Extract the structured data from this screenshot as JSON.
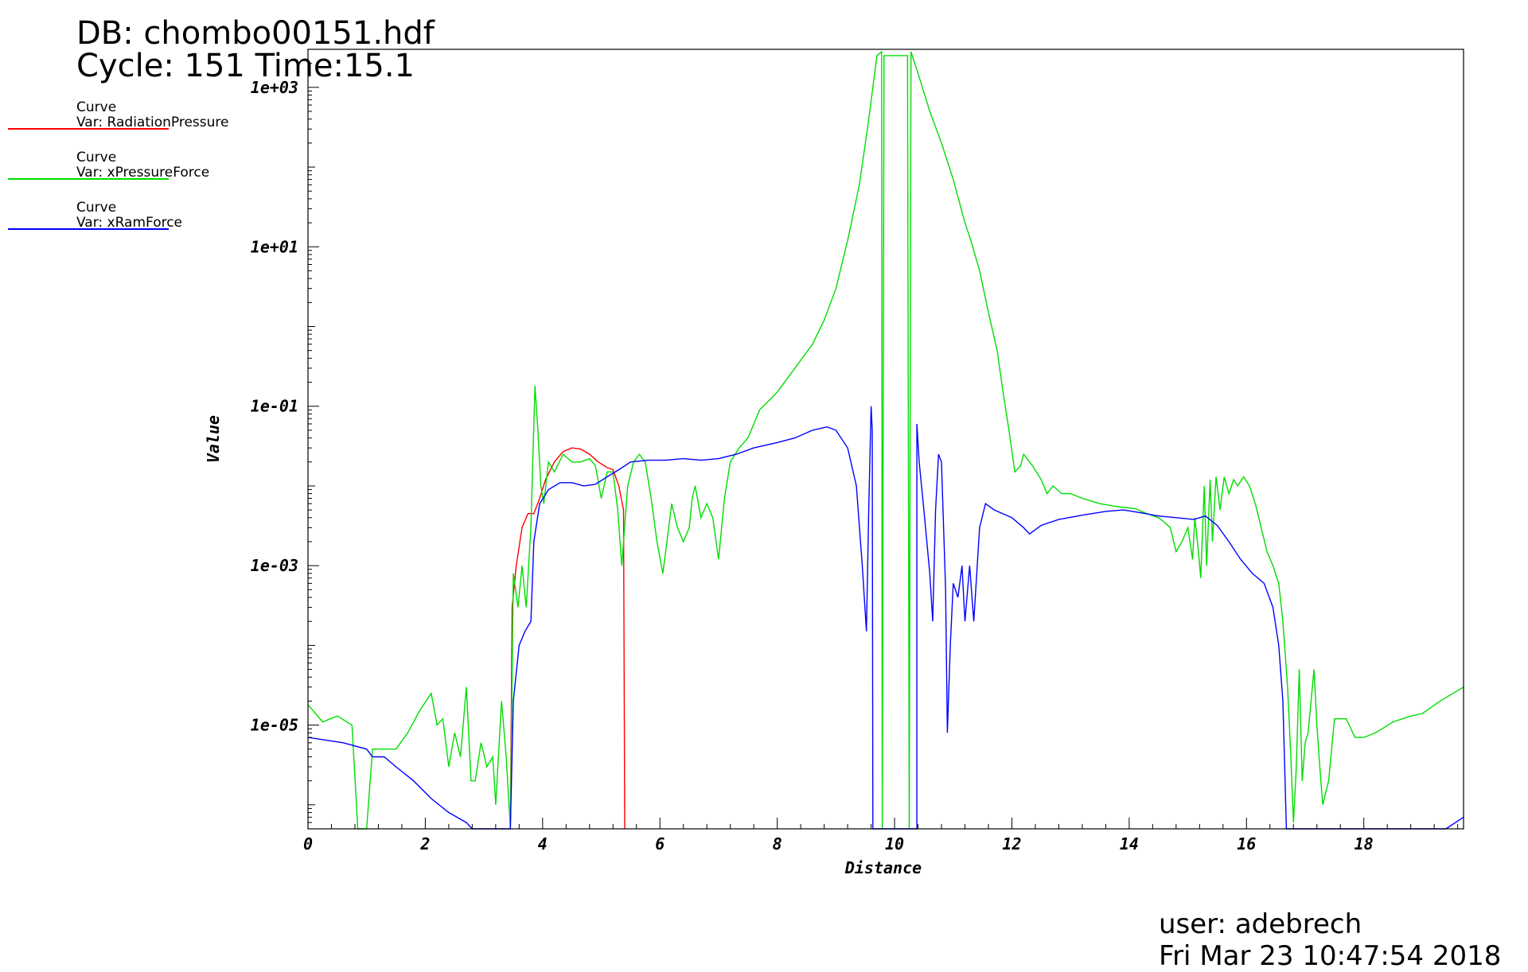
{
  "header": {
    "db": "DB: chombo00151.hdf",
    "cycle_time": "Cycle: 151 Time:15.1"
  },
  "legend": [
    {
      "title": "Curve",
      "var": "Var: RadiationPressure",
      "color": "#ff0000"
    },
    {
      "title": "Curve",
      "var": "Var: xPressureForce",
      "color": "#00dd00"
    },
    {
      "title": "Curve",
      "var": "Var: xRamForce",
      "color": "#0000ff"
    }
  ],
  "footer": {
    "user": "user: adebrech",
    "date": "Fri Mar 23 10:47:54 2018"
  },
  "chart_data": {
    "type": "line",
    "xlabel": "Distance",
    "ylabel": "Value",
    "yscale": "log",
    "xlim": [
      0,
      19.7
    ],
    "ylim": [
      5e-07,
      3000
    ],
    "xticks": [
      0,
      2,
      4,
      6,
      8,
      10,
      12,
      14,
      16,
      18
    ],
    "xtick_labels": [
      "0",
      "2",
      "4",
      "6",
      "8",
      "10",
      "12",
      "14",
      "16",
      "18"
    ],
    "yticks": [
      1e-05,
      0.001,
      0.1,
      10,
      1000
    ],
    "ytick_labels": [
      "1e-05",
      "1e-03",
      "1e-01",
      "1e+01",
      "1e+03"
    ],
    "grid": false,
    "series": [
      {
        "name": "RadiationPressure",
        "color": "#ff0000",
        "points": [
          [
            3.45,
            5e-07
          ],
          [
            3.48,
            0.0003
          ],
          [
            3.55,
            0.001
          ],
          [
            3.65,
            0.003
          ],
          [
            3.75,
            0.0045
          ],
          [
            3.85,
            0.0045
          ],
          [
            3.95,
            0.007
          ],
          [
            4.05,
            0.012
          ],
          [
            4.2,
            0.02
          ],
          [
            4.35,
            0.027
          ],
          [
            4.5,
            0.03
          ],
          [
            4.65,
            0.029
          ],
          [
            4.8,
            0.025
          ],
          [
            4.95,
            0.02
          ],
          [
            5.1,
            0.017
          ],
          [
            5.2,
            0.016
          ],
          [
            5.3,
            0.01
          ],
          [
            5.38,
            0.005
          ],
          [
            5.4,
            5e-07
          ]
        ]
      },
      {
        "name": "xPressureForce",
        "color": "#00dd00",
        "points": [
          [
            0,
            1.8e-05
          ],
          [
            0.25,
            1.1e-05
          ],
          [
            0.5,
            1.3e-05
          ],
          [
            0.75,
            1e-05
          ],
          [
            0.85,
            5e-07
          ],
          [
            1.0,
            5e-07
          ],
          [
            1.1,
            5e-06
          ],
          [
            1.25,
            5e-06
          ],
          [
            1.5,
            5e-06
          ],
          [
            1.7,
            8e-06
          ],
          [
            1.9,
            1.5e-05
          ],
          [
            2.1,
            2.5e-05
          ],
          [
            2.2,
            1e-05
          ],
          [
            2.3,
            1.2e-05
          ],
          [
            2.4,
            3e-06
          ],
          [
            2.5,
            8e-06
          ],
          [
            2.6,
            4e-06
          ],
          [
            2.7,
            3e-05
          ],
          [
            2.78,
            2e-06
          ],
          [
            2.85,
            2e-06
          ],
          [
            2.95,
            6e-06
          ],
          [
            3.05,
            3e-06
          ],
          [
            3.15,
            4e-06
          ],
          [
            3.2,
            1e-06
          ],
          [
            3.3,
            2e-05
          ],
          [
            3.38,
            4e-06
          ],
          [
            3.45,
            5e-07
          ],
          [
            3.5,
            0.0008
          ],
          [
            3.58,
            0.0003
          ],
          [
            3.65,
            0.001
          ],
          [
            3.72,
            0.0003
          ],
          [
            3.8,
            0.003
          ],
          [
            3.87,
            0.18
          ],
          [
            3.92,
            0.05
          ],
          [
            3.97,
            0.01
          ],
          [
            4.02,
            0.006
          ],
          [
            4.1,
            0.02
          ],
          [
            4.2,
            0.015
          ],
          [
            4.35,
            0.025
          ],
          [
            4.5,
            0.02
          ],
          [
            4.65,
            0.02
          ],
          [
            4.8,
            0.022
          ],
          [
            4.9,
            0.018
          ],
          [
            5.0,
            0.007
          ],
          [
            5.1,
            0.015
          ],
          [
            5.2,
            0.015
          ],
          [
            5.28,
            0.005
          ],
          [
            5.35,
            0.001
          ],
          [
            5.45,
            0.01
          ],
          [
            5.55,
            0.02
          ],
          [
            5.65,
            0.025
          ],
          [
            5.75,
            0.02
          ],
          [
            5.85,
            0.007
          ],
          [
            5.95,
            0.002
          ],
          [
            6.05,
            0.0008
          ],
          [
            6.15,
            0.003
          ],
          [
            6.2,
            0.006
          ],
          [
            6.3,
            0.003
          ],
          [
            6.4,
            0.002
          ],
          [
            6.5,
            0.003
          ],
          [
            6.55,
            0.007
          ],
          [
            6.6,
            0.01
          ],
          [
            6.7,
            0.004
          ],
          [
            6.8,
            0.006
          ],
          [
            6.9,
            0.004
          ],
          [
            7.0,
            0.0012
          ],
          [
            7.1,
            0.007
          ],
          [
            7.2,
            0.02
          ],
          [
            7.35,
            0.03
          ],
          [
            7.5,
            0.04
          ],
          [
            7.7,
            0.09
          ],
          [
            8.0,
            0.15
          ],
          [
            8.3,
            0.3
          ],
          [
            8.6,
            0.6
          ],
          [
            8.8,
            1.2
          ],
          [
            9.0,
            3
          ],
          [
            9.2,
            12
          ],
          [
            9.4,
            60
          ],
          [
            9.55,
            350
          ],
          [
            9.7,
            2500
          ],
          [
            9.78,
            2800
          ],
          [
            9.79,
            5e-07
          ],
          [
            9.82,
            2500
          ],
          [
            10.22,
            2500
          ],
          [
            10.25,
            5e-07
          ],
          [
            10.28,
            2800
          ],
          [
            10.4,
            1500
          ],
          [
            10.6,
            500
          ],
          [
            10.8,
            200
          ],
          [
            11.0,
            70
          ],
          [
            11.2,
            20
          ],
          [
            11.3,
            12
          ],
          [
            11.45,
            5
          ],
          [
            11.6,
            1.5
          ],
          [
            11.75,
            0.5
          ],
          [
            11.85,
            0.15
          ],
          [
            11.95,
            0.05
          ],
          [
            12.05,
            0.015
          ],
          [
            12.15,
            0.018
          ],
          [
            12.2,
            0.025
          ],
          [
            12.35,
            0.018
          ],
          [
            12.5,
            0.012
          ],
          [
            12.6,
            0.008
          ],
          [
            12.7,
            0.01
          ],
          [
            12.85,
            0.008
          ],
          [
            13.0,
            0.008
          ],
          [
            13.2,
            0.007
          ],
          [
            13.5,
            0.006
          ],
          [
            13.8,
            0.0055
          ],
          [
            14.1,
            0.0052
          ],
          [
            14.3,
            0.0045
          ],
          [
            14.5,
            0.004
          ],
          [
            14.6,
            0.0035
          ],
          [
            14.7,
            0.003
          ],
          [
            14.8,
            0.0015
          ],
          [
            14.9,
            0.002
          ],
          [
            15.0,
            0.003
          ],
          [
            15.08,
            0.0012
          ],
          [
            15.12,
            0.004
          ],
          [
            15.18,
            0.0015
          ],
          [
            15.22,
            0.0007
          ],
          [
            15.28,
            0.01
          ],
          [
            15.32,
            0.001
          ],
          [
            15.38,
            0.012
          ],
          [
            15.42,
            0.002
          ],
          [
            15.48,
            0.013
          ],
          [
            15.55,
            0.005
          ],
          [
            15.62,
            0.013
          ],
          [
            15.7,
            0.008
          ],
          [
            15.78,
            0.012
          ],
          [
            15.85,
            0.01
          ],
          [
            15.95,
            0.013
          ],
          [
            16.05,
            0.01
          ],
          [
            16.15,
            0.006
          ],
          [
            16.25,
            0.003
          ],
          [
            16.35,
            0.0015
          ],
          [
            16.45,
            0.001
          ],
          [
            16.55,
            0.0006
          ],
          [
            16.62,
            0.0002
          ],
          [
            16.7,
            3e-05
          ],
          [
            16.75,
            5e-06
          ],
          [
            16.8,
            6e-07
          ],
          [
            16.85,
            3e-06
          ],
          [
            16.9,
            5e-05
          ],
          [
            16.95,
            2e-06
          ],
          [
            17.0,
            6e-06
          ],
          [
            17.05,
            8e-06
          ],
          [
            17.1,
            2e-05
          ],
          [
            17.15,
            5e-05
          ],
          [
            17.2,
            1e-05
          ],
          [
            17.25,
            3e-06
          ],
          [
            17.3,
            1e-06
          ],
          [
            17.4,
            2e-06
          ],
          [
            17.5,
            1.2e-05
          ],
          [
            17.7,
            1.2e-05
          ],
          [
            17.85,
            7e-06
          ],
          [
            18.0,
            7e-06
          ],
          [
            18.2,
            8e-06
          ],
          [
            18.5,
            1.1e-05
          ],
          [
            18.8,
            1.3e-05
          ],
          [
            19.0,
            1.4e-05
          ],
          [
            19.3,
            2e-05
          ],
          [
            19.7,
            3e-05
          ]
        ]
      },
      {
        "name": "xRamForce",
        "color": "#0000ff",
        "points": [
          [
            0,
            7e-06
          ],
          [
            0.3,
            6.5e-06
          ],
          [
            0.6,
            6e-06
          ],
          [
            1.0,
            5e-06
          ],
          [
            1.1,
            4e-06
          ],
          [
            1.3,
            4e-06
          ],
          [
            1.5,
            3e-06
          ],
          [
            1.8,
            2e-06
          ],
          [
            2.1,
            1.2e-06
          ],
          [
            2.4,
            8e-07
          ],
          [
            2.7,
            6e-07
          ],
          [
            2.8,
            5e-07
          ],
          [
            3.4,
            5e-07
          ],
          [
            3.45,
            5e-07
          ],
          [
            3.5,
            2e-05
          ],
          [
            3.6,
            0.0001
          ],
          [
            3.7,
            0.00015
          ],
          [
            3.8,
            0.0002
          ],
          [
            3.85,
            0.002
          ],
          [
            3.95,
            0.006
          ],
          [
            4.1,
            0.009
          ],
          [
            4.3,
            0.011
          ],
          [
            4.5,
            0.011
          ],
          [
            4.7,
            0.01
          ],
          [
            4.9,
            0.0105
          ],
          [
            5.1,
            0.013
          ],
          [
            5.3,
            0.016
          ],
          [
            5.5,
            0.02
          ],
          [
            5.8,
            0.021
          ],
          [
            6.1,
            0.021
          ],
          [
            6.4,
            0.022
          ],
          [
            6.7,
            0.021
          ],
          [
            7.0,
            0.022
          ],
          [
            7.3,
            0.025
          ],
          [
            7.6,
            0.03
          ],
          [
            8.0,
            0.035
          ],
          [
            8.3,
            0.04
          ],
          [
            8.6,
            0.05
          ],
          [
            8.85,
            0.055
          ],
          [
            9.0,
            0.05
          ],
          [
            9.2,
            0.03
          ],
          [
            9.35,
            0.01
          ],
          [
            9.45,
            0.001
          ],
          [
            9.52,
            0.00015
          ],
          [
            9.56,
            0.005
          ],
          [
            9.6,
            0.1
          ],
          [
            9.62,
            0.05
          ],
          [
            9.63,
            5e-07
          ],
          [
            10.38,
            5e-07
          ],
          [
            10.38,
            0.06
          ],
          [
            10.42,
            0.02
          ],
          [
            10.5,
            0.005
          ],
          [
            10.6,
            0.0008
          ],
          [
            10.65,
            0.0002
          ],
          [
            10.7,
            0.005
          ],
          [
            10.75,
            0.025
          ],
          [
            10.8,
            0.02
          ],
          [
            10.87,
            0.0005
          ],
          [
            10.9,
            8e-06
          ],
          [
            10.95,
            0.0001
          ],
          [
            11.0,
            0.0006
          ],
          [
            11.08,
            0.0004
          ],
          [
            11.15,
            0.001
          ],
          [
            11.2,
            0.0002
          ],
          [
            11.28,
            0.001
          ],
          [
            11.35,
            0.0002
          ],
          [
            11.45,
            0.003
          ],
          [
            11.55,
            0.006
          ],
          [
            11.7,
            0.005
          ],
          [
            12.0,
            0.004
          ],
          [
            12.2,
            0.003
          ],
          [
            12.3,
            0.0025
          ],
          [
            12.5,
            0.0032
          ],
          [
            12.8,
            0.0038
          ],
          [
            13.2,
            0.0043
          ],
          [
            13.6,
            0.0048
          ],
          [
            13.9,
            0.005
          ],
          [
            14.2,
            0.0046
          ],
          [
            14.5,
            0.0042
          ],
          [
            14.8,
            0.004
          ],
          [
            15.1,
            0.0038
          ],
          [
            15.3,
            0.0042
          ],
          [
            15.5,
            0.0032
          ],
          [
            15.7,
            0.002
          ],
          [
            15.9,
            0.0012
          ],
          [
            16.1,
            0.0008
          ],
          [
            16.3,
            0.0006
          ],
          [
            16.45,
            0.0003
          ],
          [
            16.55,
            0.0001
          ],
          [
            16.62,
            2e-05
          ],
          [
            16.68,
            5e-07
          ],
          [
            19.4,
            5e-07
          ],
          [
            19.7,
            7e-07
          ]
        ]
      }
    ]
  }
}
